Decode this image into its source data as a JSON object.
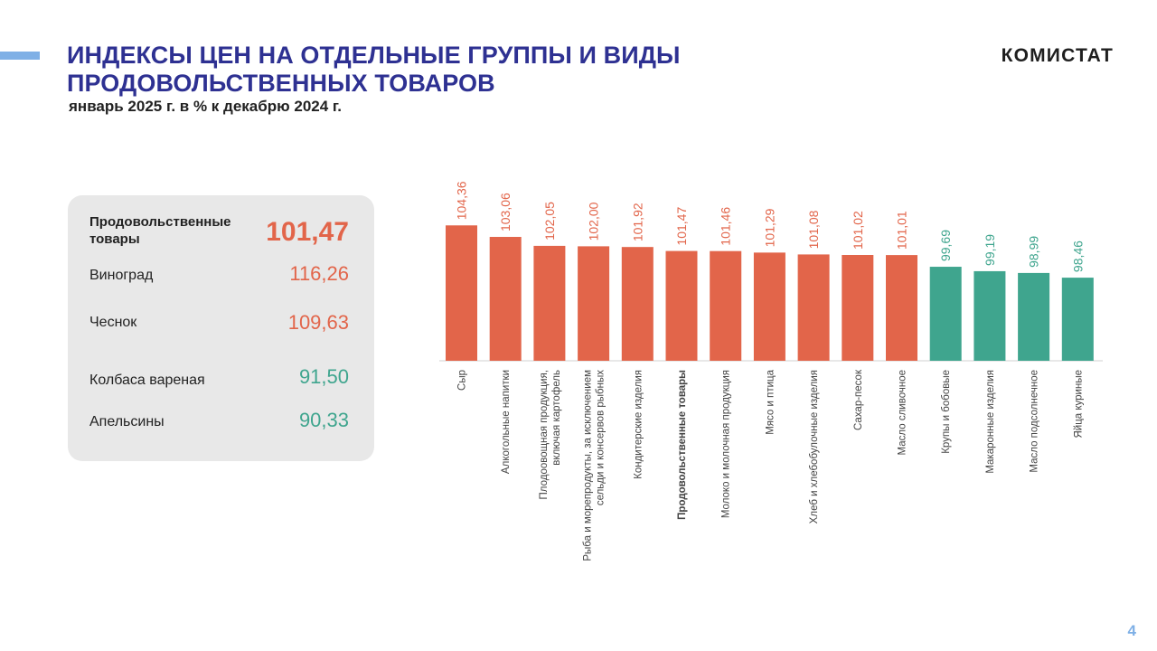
{
  "header": {
    "title_line1": "ИНДЕКСЫ ЦЕН НА ОТДЕЛЬНЫЕ  ГРУППЫ И ВИДЫ",
    "title_line2": "ПРОДОВОЛЬСТВЕННЫХ  ТОВАРОВ",
    "subtitle": "январь 2025 г. в % к декабрю 2024 г.",
    "brand": "КОМИСТАТ"
  },
  "panel": {
    "main": {
      "label": "Продовольственные товары",
      "value": "101,47"
    },
    "items": [
      {
        "label": "Виноград",
        "value": "116,26",
        "trend": "up"
      },
      {
        "label": "Чеснок",
        "value": "109,63",
        "trend": "up"
      },
      {
        "label": "Колбаса вареная",
        "value": "91,50",
        "trend": "down"
      },
      {
        "label": "Апельсины",
        "value": "90,33",
        "trend": "down"
      }
    ]
  },
  "colors": {
    "above_100": "#e2654a",
    "below_100": "#3fa58e",
    "title": "#2e3192",
    "accent": "#7fb0e6"
  },
  "chart_data": {
    "type": "bar",
    "title": "",
    "xlabel": "",
    "ylabel": "",
    "baseline": 100,
    "grid": false,
    "legend": "none",
    "categories": [
      [
        "Сыр"
      ],
      [
        "Алкогольные  напитки"
      ],
      [
        "Плодоовощная  продукция,",
        "включая картофель"
      ],
      [
        "Рыба и морепродукты,  за исключением",
        "сельди и консервов рыбных"
      ],
      [
        "Кондитерские  изделия"
      ],
      [
        "Продовольственные товары"
      ],
      [
        "Молоко и молочная  продукция"
      ],
      [
        "Мясо и птица"
      ],
      [
        "Хлеб  и хлебобулочные  изделия"
      ],
      [
        "Сахар-песок"
      ],
      [
        "Масло  сливочное"
      ],
      [
        "Крупы и бобовые"
      ],
      [
        "Макаронные  изделия"
      ],
      [
        "Масло подсолнечное"
      ],
      [
        "Яйца куриные"
      ]
    ],
    "values": [
      104.36,
      103.06,
      102.05,
      102.0,
      101.92,
      101.47,
      101.46,
      101.29,
      101.08,
      101.02,
      101.01,
      99.69,
      99.19,
      98.99,
      98.46
    ],
    "data_labels": [
      "104,36",
      "103,06",
      "102,05",
      "102,00",
      "101,92",
      "101,47",
      "101,46",
      "101,29",
      "101,08",
      "101,02",
      "101,01",
      "99,69",
      "99,19",
      "98,99",
      "98,46"
    ],
    "highlight_category_index": 5
  },
  "page_number": "4"
}
